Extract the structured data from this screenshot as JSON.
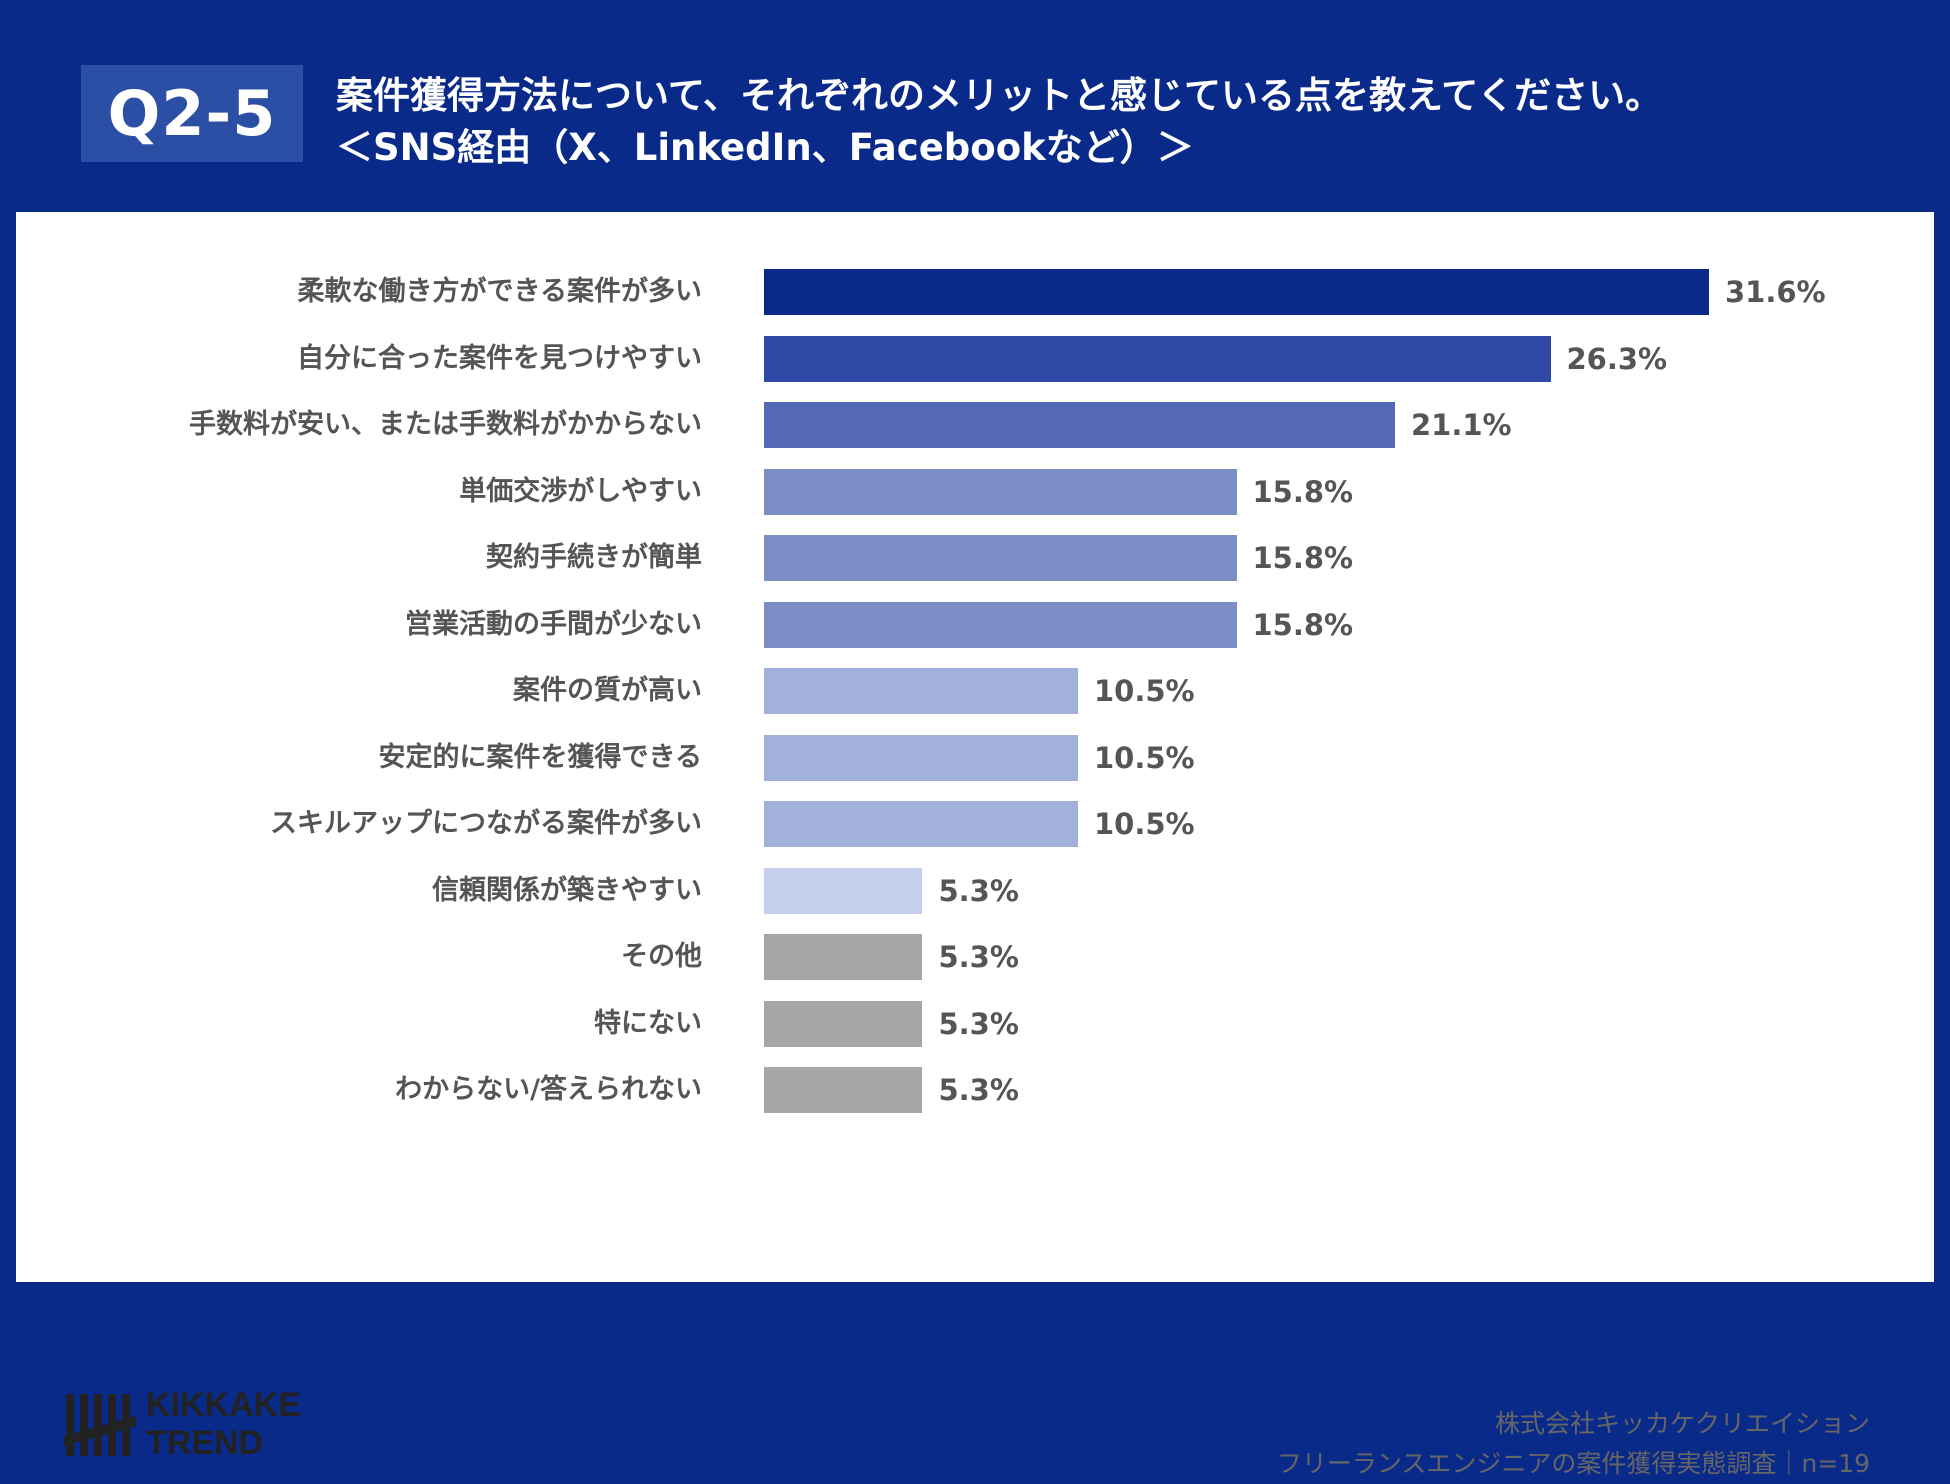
{
  "header": {
    "badge": "Q2-5",
    "title_line1": "案件獲得方法について、それぞれのメリットと感じている点を教えてください。",
    "title_line2": "＜SNS経由（X、LinkedIn、Facebookなど）＞"
  },
  "colors": {
    "header_bg": "#0a2a8a",
    "bar_shades": [
      "#0a2a8a",
      "#2f49a6",
      "#5568b4",
      "#7d8dc6",
      "#a2b0dc",
      "#c6d0ec",
      "#a6a6a6"
    ]
  },
  "chart_data": {
    "type": "bar",
    "orientation": "horizontal",
    "categories": [
      "柔軟な働き方ができる案件が多い",
      "自分に合った案件を見つけやすい",
      "手数料が安い、または手数料がかからない",
      "単価交渉がしやすい",
      "契約手続きが簡単",
      "営業活動の手間が少ない",
      "案件の質が高い",
      "安定的に案件を獲得できる",
      "スキルアップにつながる案件が多い",
      "信頼関係が築きやすい",
      "その他",
      "特にない",
      "わからない/答えられない"
    ],
    "values": [
      31.6,
      26.3,
      21.1,
      15.8,
      15.8,
      15.8,
      10.5,
      10.5,
      10.5,
      5.3,
      5.3,
      5.3,
      5.3
    ],
    "value_labels": [
      "31.6%",
      "26.3%",
      "21.1%",
      "15.8%",
      "15.8%",
      "15.8%",
      "10.5%",
      "10.5%",
      "10.5%",
      "5.3%",
      "5.3%",
      "5.3%",
      "5.3%"
    ],
    "bar_colors": [
      "#0a2a8a",
      "#2f49a6",
      "#5568b4",
      "#7d8dc6",
      "#7d8dc6",
      "#7d8dc6",
      "#a2b0dc",
      "#a2b0dc",
      "#a2b0dc",
      "#c6d0ec",
      "#a6a6a6",
      "#a6a6a6",
      "#a6a6a6"
    ],
    "xlim": [
      0,
      31.6
    ],
    "grid": false,
    "legend": "none"
  },
  "logo": {
    "line1": "KIKKAKE",
    "line2": "TREND"
  },
  "footer": {
    "company": "株式会社キッカケクリエイション",
    "survey": "フリーランスエンジニアの案件獲得実態調査｜n=19"
  }
}
